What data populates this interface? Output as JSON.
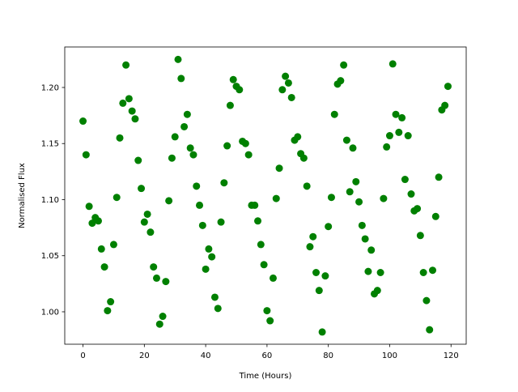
{
  "chart_data": {
    "type": "scatter",
    "xlabel": "Time (Hours)",
    "ylabel": "Normalised Flux",
    "color": "#008000",
    "xlim": [
      -5.95,
      124.95
    ],
    "ylim": [
      0.9711,
      1.2361
    ],
    "xticks": [
      0,
      20,
      40,
      60,
      80,
      100,
      120
    ],
    "yticks": [
      {
        "value": 1.0,
        "label": "1.00"
      },
      {
        "value": 1.05,
        "label": "1.05"
      },
      {
        "value": 1.1,
        "label": "1.10"
      },
      {
        "value": 1.15,
        "label": "1.15"
      },
      {
        "value": 1.2,
        "label": "1.20"
      }
    ],
    "x": [
      0,
      1,
      2,
      3,
      4,
      5,
      6,
      7,
      8,
      9,
      10,
      11,
      12,
      13,
      14,
      15,
      16,
      17,
      18,
      19,
      20,
      21,
      22,
      23,
      24,
      25,
      26,
      27,
      28,
      29,
      30,
      31,
      32,
      33,
      34,
      35,
      36,
      37,
      38,
      39,
      40,
      41,
      42,
      43,
      44,
      45,
      46,
      47,
      48,
      49,
      50,
      51,
      52,
      53,
      54,
      55,
      56,
      57,
      58,
      59,
      60,
      61,
      62,
      63,
      64,
      65,
      66,
      67,
      68,
      69,
      70,
      71,
      72,
      73,
      74,
      75,
      76,
      77,
      78,
      79,
      80,
      81,
      82,
      83,
      84,
      85,
      86,
      87,
      88,
      89,
      90,
      91,
      92,
      93,
      94,
      95,
      96,
      97,
      98,
      99,
      100,
      101,
      102,
      103,
      104,
      105,
      106,
      107,
      108,
      109,
      110,
      111,
      112,
      113,
      114,
      115,
      116,
      117,
      118,
      119
    ],
    "y": [
      1.17,
      1.14,
      1.094,
      1.079,
      1.084,
      1.081,
      1.056,
      1.04,
      1.001,
      1.009,
      1.06,
      1.102,
      1.155,
      1.186,
      1.22,
      1.19,
      1.179,
      1.172,
      1.135,
      1.11,
      1.08,
      1.087,
      1.071,
      1.04,
      1.03,
      0.989,
      0.996,
      1.027,
      1.099,
      1.137,
      1.156,
      1.225,
      1.208,
      1.165,
      1.176,
      1.146,
      1.14,
      1.112,
      1.095,
      1.077,
      1.038,
      1.056,
      1.049,
      1.013,
      1.003,
      1.08,
      1.115,
      1.148,
      1.184,
      1.207,
      1.201,
      1.198,
      1.152,
      1.15,
      1.14,
      1.095,
      1.095,
      1.081,
      1.06,
      1.042,
      1.001,
      0.992,
      1.03,
      1.101,
      1.128,
      1.198,
      1.21,
      1.204,
      1.191,
      1.153,
      1.156,
      1.141,
      1.137,
      1.112,
      1.058,
      1.067,
      1.035,
      1.019,
      0.982,
      1.032,
      1.076,
      1.102,
      1.176,
      1.203,
      1.206,
      1.22,
      1.153,
      1.107,
      1.146,
      1.116,
      1.098,
      1.077,
      1.065,
      1.036,
      1.055,
      1.016,
      1.019,
      1.035,
      1.101,
      1.147,
      1.157,
      1.221,
      1.176,
      1.16,
      1.173,
      1.118,
      1.157,
      1.105,
      1.09,
      1.092,
      1.068,
      1.035,
      1.01,
      0.984,
      1.037,
      1.085,
      1.12,
      1.18,
      1.184,
      1.201
    ]
  }
}
